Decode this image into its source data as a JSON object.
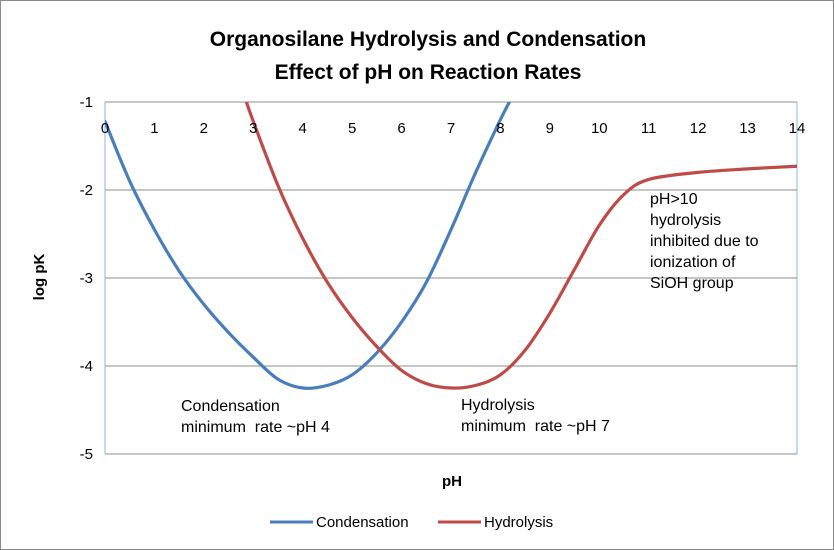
{
  "chart_data": {
    "type": "line",
    "title_lines": [
      "Organosilane Hydrolysis and Condensation",
      "Effect of pH on Reaction Rates"
    ],
    "xlabel": "pH",
    "ylabel": "log pK",
    "xlim": [
      0,
      14
    ],
    "ylim": [
      -5,
      -1
    ],
    "x_ticks": [
      "0",
      "1",
      "2",
      "3",
      "4",
      "5",
      "6",
      "7",
      "8",
      "9",
      "10",
      "11",
      "12",
      "13",
      "14"
    ],
    "y_ticks": [
      "-1",
      "-2",
      "-3",
      "-4",
      "-5"
    ],
    "grid": "horizontal",
    "legend_position": "bottom",
    "series": [
      {
        "name": "Condensation",
        "color": "#4a7ebb",
        "points": [
          [
            0,
            -1.22
          ],
          [
            0.5,
            -1.9
          ],
          [
            1,
            -2.45
          ],
          [
            1.5,
            -2.92
          ],
          [
            2,
            -3.3
          ],
          [
            2.5,
            -3.62
          ],
          [
            3,
            -3.9
          ],
          [
            3.5,
            -4.15
          ],
          [
            4,
            -4.25
          ],
          [
            4.5,
            -4.22
          ],
          [
            5,
            -4.1
          ],
          [
            5.5,
            -3.85
          ],
          [
            6,
            -3.5
          ],
          [
            6.5,
            -3.05
          ],
          [
            7,
            -2.45
          ],
          [
            7.5,
            -1.8
          ],
          [
            8,
            -1.2
          ],
          [
            8.2,
            -0.98
          ]
        ]
      },
      {
        "name": "Hydrolysis",
        "color": "#be4b48",
        "points": [
          [
            2.85,
            -0.98
          ],
          [
            3,
            -1.22
          ],
          [
            3.5,
            -1.95
          ],
          [
            4,
            -2.55
          ],
          [
            4.5,
            -3.05
          ],
          [
            5,
            -3.45
          ],
          [
            5.5,
            -3.78
          ],
          [
            6,
            -4.05
          ],
          [
            6.5,
            -4.2
          ],
          [
            7,
            -4.25
          ],
          [
            7.5,
            -4.22
          ],
          [
            8,
            -4.1
          ],
          [
            8.5,
            -3.82
          ],
          [
            9,
            -3.4
          ],
          [
            9.5,
            -2.9
          ],
          [
            10,
            -2.4
          ],
          [
            10.5,
            -2.05
          ],
          [
            11,
            -1.88
          ],
          [
            12,
            -1.8
          ],
          [
            13,
            -1.76
          ],
          [
            14,
            -1.73
          ]
        ]
      }
    ],
    "annotations": [
      {
        "lines": [
          "Condensation",
          "minimum  rate ~pH 4"
        ]
      },
      {
        "lines": [
          "Hydrolysis",
          "minimum  rate ~pH 7"
        ]
      },
      {
        "lines": [
          "pH>10",
          "hydrolysis",
          "inhibited due to",
          "ionization of",
          "SiOH group"
        ]
      }
    ]
  }
}
